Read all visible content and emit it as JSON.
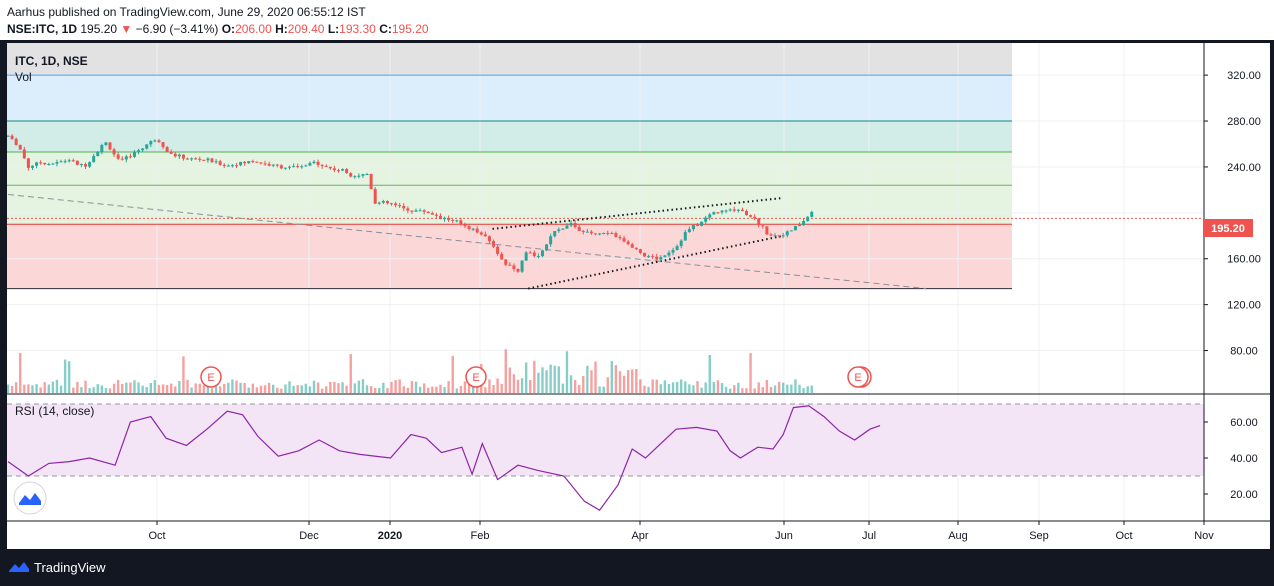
{
  "header": {
    "published_by": "Aarhus published on TradingView.com, June 29, 2020 06:55:12 IST",
    "symbol_line_prefix": "NSE:ITC, 1D",
    "last": "195.20",
    "change": "−6.90 (−3.41%)",
    "o_label": "O:",
    "o_value": "206.00",
    "h_label": "H:",
    "h_value": "209.40",
    "l_label": "L:",
    "l_value": "193.30",
    "c_label": "C:",
    "c_value": "195.20"
  },
  "panel": {
    "title": "ITC, 1D, NSE",
    "vol_label": "Vol",
    "rsi_label": "RSI (14, close)",
    "earnings_marker": "E",
    "price_tag": "195.20"
  },
  "footer": {
    "brand": "TradingView"
  },
  "colors": {
    "up": "#26a69a",
    "down": "#ef5350",
    "rsi_line": "#8e24aa",
    "rsi_band": "#f3e5f5"
  },
  "chart_data": {
    "type": "candlestick",
    "symbol": "ITC",
    "interval": "1D",
    "last_price": 195.2,
    "price_axis": {
      "ticks": [
        80,
        120,
        160,
        200,
        240,
        280,
        320
      ],
      "labels": [
        "80.00",
        "120.00",
        "160.00",
        "",
        "240.00",
        "280.00",
        "320.00"
      ],
      "range": [
        43,
        348
      ]
    },
    "x_axis": {
      "ticks": [
        "Oct",
        "Dec",
        "2020",
        "Feb",
        "Apr",
        "Jun",
        "Jul",
        "Aug",
        "Sep",
        "Oct",
        "Nov"
      ]
    },
    "price_keypoints": [
      [
        0,
        267
      ],
      [
        10,
        259
      ],
      [
        20,
        240
      ],
      [
        30,
        244
      ],
      [
        45,
        243
      ],
      [
        60,
        246
      ],
      [
        75,
        240
      ],
      [
        95,
        262
      ],
      [
        110,
        244
      ],
      [
        125,
        253
      ],
      [
        145,
        265
      ],
      [
        160,
        251
      ],
      [
        175,
        247
      ],
      [
        195,
        246
      ],
      [
        215,
        241
      ],
      [
        240,
        245
      ],
      [
        260,
        241
      ],
      [
        285,
        239
      ],
      [
        300,
        244
      ],
      [
        315,
        239
      ],
      [
        330,
        236
      ],
      [
        338,
        233
      ],
      [
        345,
        233
      ],
      [
        352,
        234
      ],
      [
        360,
        209
      ],
      [
        375,
        208
      ],
      [
        390,
        203
      ],
      [
        410,
        201
      ],
      [
        425,
        196
      ],
      [
        440,
        192
      ],
      [
        455,
        186
      ],
      [
        470,
        178
      ],
      [
        480,
        165
      ],
      [
        488,
        155
      ],
      [
        500,
        148
      ],
      [
        508,
        165
      ],
      [
        520,
        163
      ],
      [
        535,
        182
      ],
      [
        550,
        192
      ],
      [
        565,
        182
      ],
      [
        580,
        182
      ],
      [
        595,
        180
      ],
      [
        610,
        172
      ],
      [
        625,
        162
      ],
      [
        638,
        160
      ],
      [
        655,
        170
      ],
      [
        665,
        184
      ],
      [
        680,
        192
      ],
      [
        690,
        200
      ],
      [
        705,
        202
      ],
      [
        718,
        203
      ],
      [
        730,
        196
      ],
      [
        745,
        182
      ],
      [
        755,
        180
      ],
      [
        765,
        183
      ],
      [
        778,
        191
      ],
      [
        790,
        202
      ]
    ],
    "volume_range": [
      0,
      150
    ],
    "horizontal_levels": [
      134,
      190,
      224,
      253,
      280,
      320
    ],
    "zone_bands": [
      {
        "from": 134,
        "to": 190,
        "color": "#fcd7d7"
      },
      {
        "from": 190,
        "to": 253,
        "color": "#e4f4e0"
      },
      {
        "from": 253,
        "to": 280,
        "color": "#d2ece8"
      },
      {
        "from": 280,
        "to": 320,
        "color": "#dceefb"
      },
      {
        "from": 320,
        "to": 348,
        "color": "#e2e2e3"
      }
    ],
    "trendlines": [
      {
        "name": "long-downtrend",
        "style": "dashed",
        "points": [
          [
            0,
            216
          ],
          [
            900,
            134
          ]
        ]
      },
      {
        "name": "channel-top",
        "style": "dotted",
        "points": [
          [
            475,
            186
          ],
          [
            760,
            213
          ]
        ]
      },
      {
        "name": "channel-bottom",
        "style": "dotted",
        "points": [
          [
            510,
            134
          ],
          [
            760,
            180
          ]
        ]
      }
    ],
    "rsi": {
      "axis_ticks": [
        20,
        40,
        60
      ],
      "range": [
        5,
        75
      ],
      "upper": 70,
      "lower": 30,
      "keypoints": [
        [
          0,
          38
        ],
        [
          20,
          30
        ],
        [
          40,
          37
        ],
        [
          60,
          38
        ],
        [
          80,
          40
        ],
        [
          105,
          36
        ],
        [
          120,
          60
        ],
        [
          140,
          63
        ],
        [
          155,
          51
        ],
        [
          175,
          47
        ],
        [
          195,
          56
        ],
        [
          215,
          66
        ],
        [
          230,
          64
        ],
        [
          245,
          52
        ],
        [
          265,
          41
        ],
        [
          285,
          44
        ],
        [
          305,
          50
        ],
        [
          325,
          44
        ],
        [
          345,
          42
        ],
        [
          375,
          40
        ],
        [
          395,
          53
        ],
        [
          410,
          51
        ],
        [
          425,
          43
        ],
        [
          445,
          46
        ],
        [
          455,
          31
        ],
        [
          465,
          48
        ],
        [
          480,
          28
        ],
        [
          500,
          36
        ],
        [
          520,
          33
        ],
        [
          545,
          30
        ],
        [
          565,
          16
        ],
        [
          580,
          11
        ],
        [
          598,
          25
        ],
        [
          612,
          45
        ],
        [
          625,
          40
        ],
        [
          640,
          48
        ],
        [
          655,
          56
        ],
        [
          675,
          57
        ],
        [
          695,
          55
        ],
        [
          708,
          44
        ],
        [
          718,
          40
        ],
        [
          735,
          46
        ],
        [
          750,
          45
        ],
        [
          760,
          53
        ],
        [
          770,
          68
        ],
        [
          785,
          69
        ],
        [
          800,
          63
        ],
        [
          815,
          55
        ],
        [
          830,
          50
        ],
        [
          845,
          56
        ],
        [
          855,
          58
        ]
      ]
    }
  }
}
